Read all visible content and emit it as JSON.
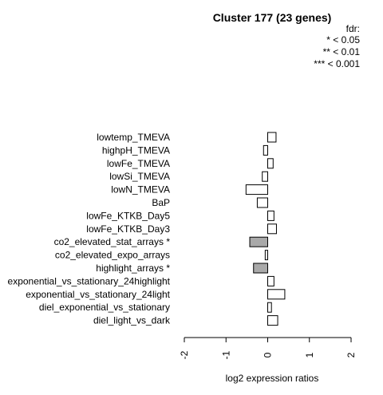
{
  "chart_data": {
    "type": "bar",
    "orientation": "horizontal",
    "title": "Cluster 177 (23 genes)",
    "xlabel": "log2 expression ratios",
    "ylabel": "",
    "xlim": [
      -2,
      2
    ],
    "xticks": [
      "-2",
      "-1",
      "0",
      "1",
      "2"
    ],
    "legend": {
      "title": "fdr:",
      "entries": [
        "* < 0.05",
        "** < 0.01",
        "*** < 0.001"
      ],
      "position": "top-right"
    },
    "categories": [
      "lowtemp_TMEVA",
      "highpH_TMEVA",
      "lowFe_TMEVA",
      "lowSi_TMEVA",
      "lowN_TMEVA",
      "BaP",
      "lowFe_KTKB_Day5",
      "lowFe_KTKB_Day3",
      "co2_elevated_stat_arrays *",
      "co2_elevated_expo_arrays",
      "highlight_arrays *",
      "exponential_vs_stationary_24highlight",
      "exponential_vs_stationary_24light",
      "diel_exponential_vs_stationary",
      "diel_light_vs_dark"
    ],
    "values": [
      0.2,
      -0.1,
      0.13,
      -0.13,
      -0.52,
      -0.25,
      0.15,
      0.21,
      -0.43,
      -0.06,
      -0.34,
      0.15,
      0.41,
      0.09,
      0.24
    ],
    "significant": [
      false,
      false,
      false,
      false,
      false,
      false,
      false,
      false,
      true,
      false,
      true,
      false,
      false,
      false,
      false
    ],
    "colors": {
      "normal": "#ffffff",
      "significant": "#a9a9a9",
      "stroke": "#000000"
    }
  }
}
